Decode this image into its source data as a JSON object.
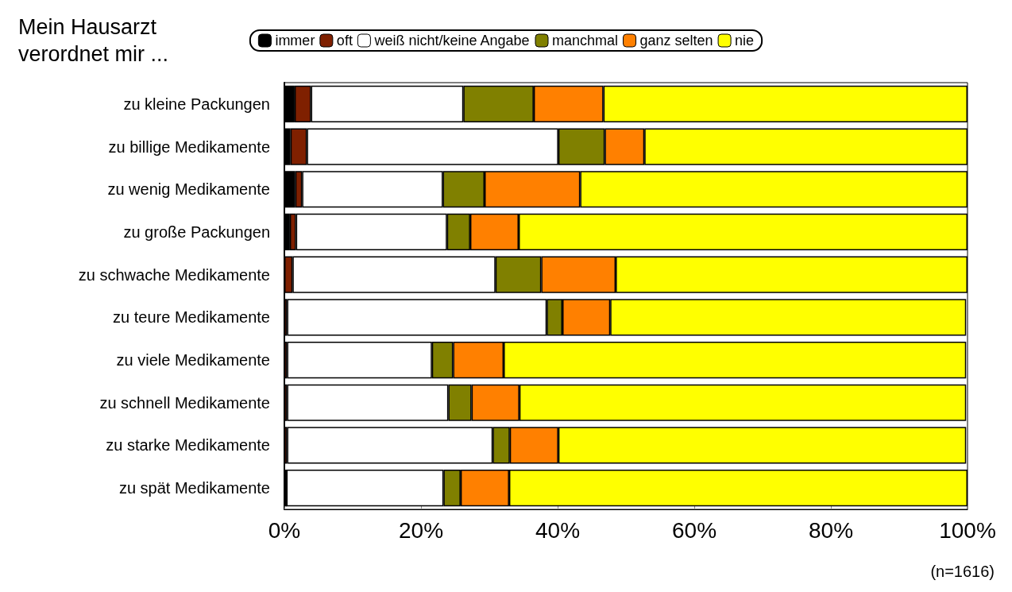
{
  "chart_data": {
    "type": "bar",
    "orientation": "horizontal",
    "stacked": true,
    "title": "Mein Hausarzt\nverordnet mir ...",
    "categories": [
      "zu kleine Packungen",
      "zu billige Medikamente",
      "zu wenig Medikamente",
      "zu große Packungen",
      "zu schwache Medikamente",
      "zu teure Medikamente",
      "zu viele Medikamente",
      "zu schnell Medikamente",
      "zu starke Medikamente",
      "zu spät Medikamente"
    ],
    "series": [
      {
        "name": "immer",
        "color": "#000000",
        "values": [
          1.5,
          0.9,
          1.6,
          0.8,
          0,
          null,
          null,
          null,
          null,
          0.3
        ]
      },
      {
        "name": "oft",
        "color": "#7f2000",
        "values": [
          2.4,
          2.4,
          1.0,
          0.9,
          1.2,
          0.4,
          0.4,
          0.4,
          0.4,
          0
        ]
      },
      {
        "name": "weiß nicht/keine Angabe",
        "color": "#ffffff",
        "values": [
          22.3,
          36.8,
          20.6,
          22.1,
          29.7,
          38.0,
          21.2,
          23.6,
          30.1,
          23.0
        ]
      },
      {
        "name": "manchmal",
        "color": "#808000",
        "values": [
          10.3,
          6.8,
          6.1,
          3.4,
          6.7,
          2.3,
          3.1,
          3.4,
          2.5,
          2.5
        ]
      },
      {
        "name": "ganz selten",
        "color": "#ff8000",
        "values": [
          10.2,
          5.8,
          14.0,
          7.1,
          10.9,
          7.0,
          7.4,
          7.0,
          7.1,
          7.1
        ]
      },
      {
        "name": "nie",
        "color": "#ffff00",
        "values": [
          53.3,
          47.3,
          56.7,
          65.7,
          51.5,
          52.1,
          67.7,
          65.4,
          59.7,
          67.1
        ]
      }
    ],
    "xlim": [
      0,
      100
    ],
    "xticks": [
      {
        "value": 0,
        "label": "0%"
      },
      {
        "value": 20,
        "label": "20%"
      },
      {
        "value": 40,
        "label": "40%"
      },
      {
        "value": 60,
        "label": "60%"
      },
      {
        "value": 80,
        "label": "80%"
      },
      {
        "value": 100,
        "label": "100%"
      }
    ],
    "grid": false,
    "legend": "top",
    "annotations": [
      "(n=1616)"
    ]
  }
}
